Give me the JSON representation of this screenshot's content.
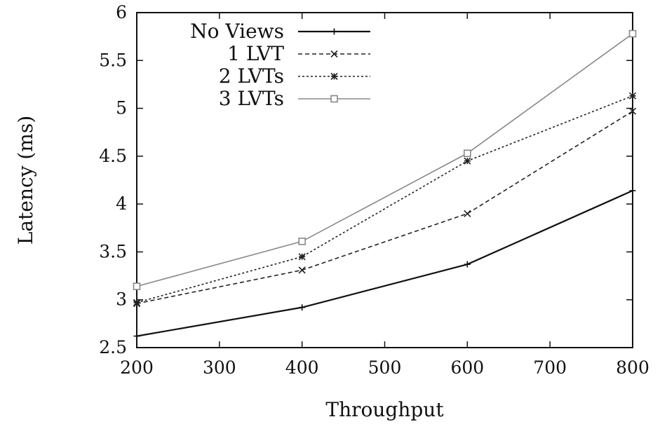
{
  "chart_data": {
    "type": "line",
    "title": "",
    "xlabel": "Throughput",
    "ylabel": "Latency (ms)",
    "xlim": [
      200,
      800
    ],
    "ylim": [
      2.5,
      6
    ],
    "xticks": [
      200,
      300,
      400,
      500,
      600,
      700,
      800
    ],
    "yticks": [
      2.5,
      3,
      3.5,
      4,
      4.5,
      5,
      5.5,
      6
    ],
    "ytick_labels": [
      "2.5",
      "3",
      "3.5",
      "4",
      "4.5",
      "5",
      "5.5",
      "6"
    ],
    "grid": false,
    "legend": "top-left",
    "x": [
      200,
      400,
      600,
      800
    ],
    "series": [
      {
        "name": "No Views",
        "values": [
          2.62,
          2.92,
          3.37,
          4.14
        ],
        "marker": "plus",
        "dash": "solid",
        "color": "#111111"
      },
      {
        "name": "1 LVT",
        "values": [
          2.96,
          3.31,
          3.9,
          4.97
        ],
        "marker": "cross",
        "dash": "dashed",
        "color": "#222222"
      },
      {
        "name": "2 LVTs",
        "values": [
          2.97,
          3.45,
          4.45,
          5.13
        ],
        "marker": "asterisk",
        "dash": "dotted",
        "color": "#222222"
      },
      {
        "name": "3 LVTs",
        "values": [
          3.14,
          3.61,
          4.53,
          5.78
        ],
        "marker": "square",
        "dash": "dashdot",
        "color": "#888888"
      }
    ]
  }
}
